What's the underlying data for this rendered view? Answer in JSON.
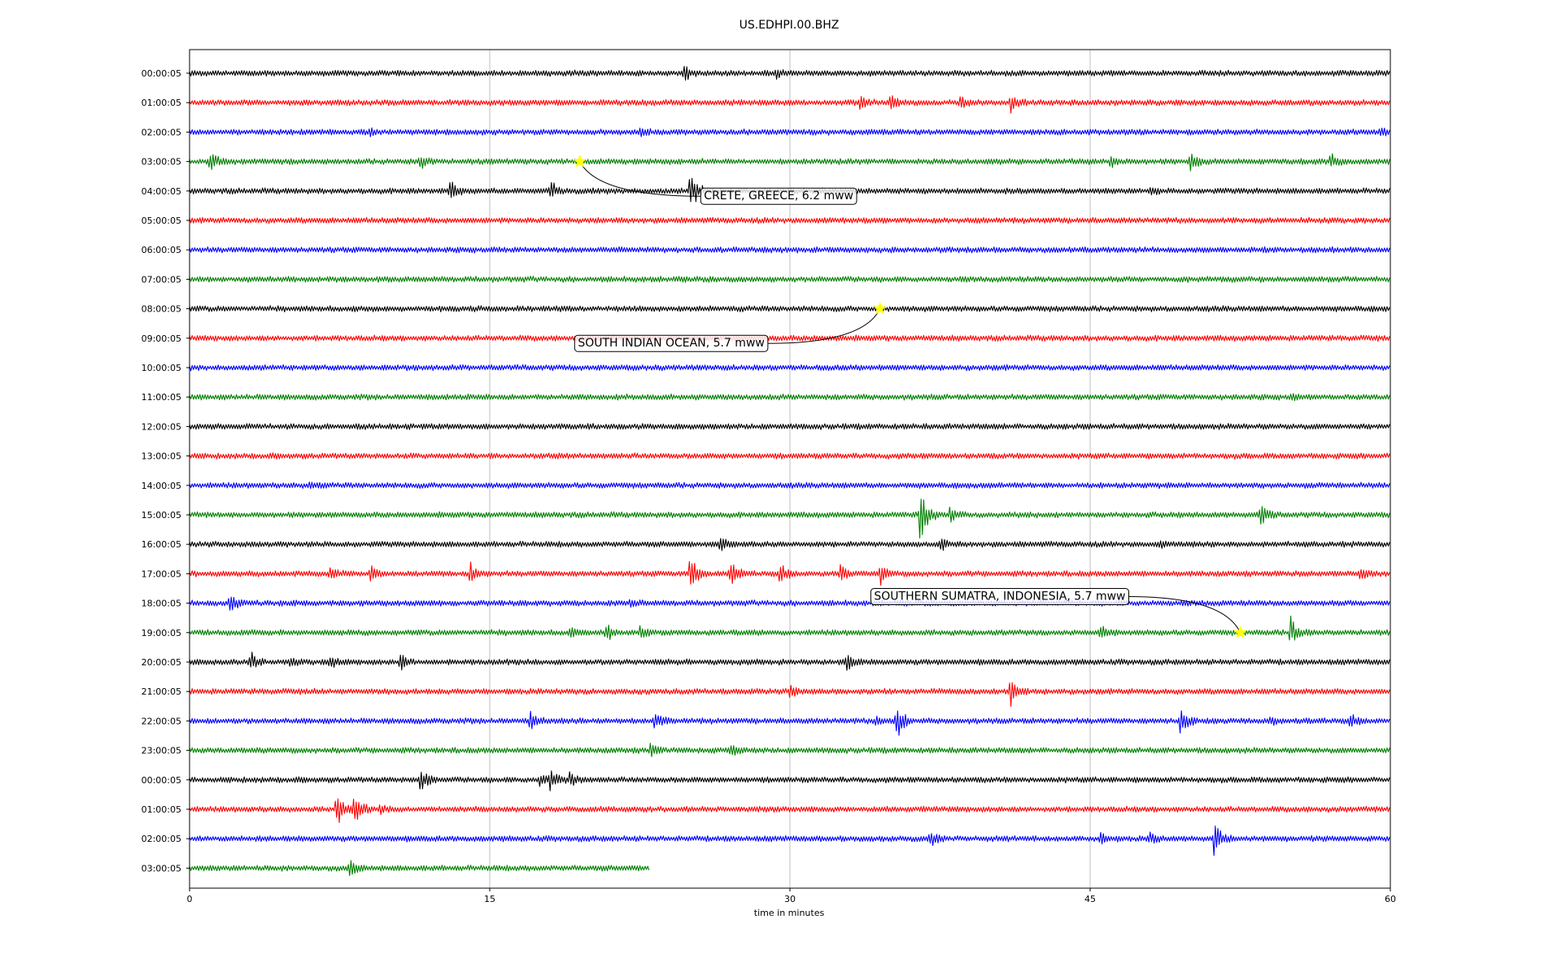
{
  "chart_data": {
    "type": "line",
    "title": "US.EDHPI.00.BHZ",
    "xlabel": "time in minutes",
    "ylabel": "",
    "xlim": [
      0,
      60
    ],
    "x_ticks": [
      0,
      15,
      30,
      45,
      60
    ],
    "x_tick_labels": [
      "0",
      "15",
      "30",
      "45",
      "60"
    ],
    "grid_x": true,
    "row_labels": [
      "00:00:05",
      "01:00:05",
      "02:00:05",
      "03:00:05",
      "04:00:05",
      "05:00:05",
      "06:00:05",
      "07:00:05",
      "08:00:05",
      "09:00:05",
      "10:00:05",
      "11:00:05",
      "12:00:05",
      "13:00:05",
      "14:00:05",
      "15:00:05",
      "16:00:05",
      "17:00:05",
      "18:00:05",
      "19:00:05",
      "20:00:05",
      "21:00:05",
      "22:00:05",
      "23:00:05",
      "00:00:05",
      "01:00:05",
      "02:00:05",
      "03:00:05"
    ],
    "row_colors": [
      "#000000",
      "#ff0000",
      "#0000ff",
      "#008000"
    ],
    "last_row_end_minutes": 23,
    "events_bursts": [
      {
        "row": 0,
        "minute": 24.7,
        "amp": 14
      },
      {
        "row": 0,
        "minute": 29.3,
        "amp": 5
      },
      {
        "row": 1,
        "minute": 33.5,
        "amp": 10
      },
      {
        "row": 1,
        "minute": 35,
        "amp": 10
      },
      {
        "row": 1,
        "minute": 38.5,
        "amp": 8
      },
      {
        "row": 1,
        "minute": 41,
        "amp": 16
      },
      {
        "row": 2,
        "minute": 9,
        "amp": 4
      },
      {
        "row": 2,
        "minute": 22.5,
        "amp": 5
      },
      {
        "row": 2,
        "minute": 59.5,
        "amp": 6
      },
      {
        "row": 3,
        "minute": 1,
        "amp": 14
      },
      {
        "row": 3,
        "minute": 11.5,
        "amp": 10
      },
      {
        "row": 3,
        "minute": 46,
        "amp": 8
      },
      {
        "row": 3,
        "minute": 50,
        "amp": 14
      },
      {
        "row": 3,
        "minute": 57,
        "amp": 10
      },
      {
        "row": 4,
        "minute": 13,
        "amp": 14
      },
      {
        "row": 4,
        "minute": 18,
        "amp": 14
      },
      {
        "row": 4,
        "minute": 25,
        "amp": 34
      },
      {
        "row": 4,
        "minute": 48,
        "amp": 5
      },
      {
        "row": 11,
        "minute": 55,
        "amp": 3
      },
      {
        "row": 14,
        "minute": 6,
        "amp": 6
      },
      {
        "row": 15,
        "minute": 36.5,
        "amp": 46
      },
      {
        "row": 15,
        "minute": 38,
        "amp": 10
      },
      {
        "row": 15,
        "minute": 53.5,
        "amp": 18
      },
      {
        "row": 16,
        "minute": 26.5,
        "amp": 12
      },
      {
        "row": 16,
        "minute": 37.5,
        "amp": 10
      },
      {
        "row": 16,
        "minute": 48.5,
        "amp": 3
      },
      {
        "row": 17,
        "minute": 7,
        "amp": 10
      },
      {
        "row": 17,
        "minute": 9,
        "amp": 12
      },
      {
        "row": 17,
        "minute": 14,
        "amp": 16
      },
      {
        "row": 17,
        "minute": 25,
        "amp": 34
      },
      {
        "row": 17,
        "minute": 27,
        "amp": 22
      },
      {
        "row": 17,
        "minute": 29.5,
        "amp": 16
      },
      {
        "row": 17,
        "minute": 32.5,
        "amp": 14
      },
      {
        "row": 17,
        "minute": 34.5,
        "amp": 14
      },
      {
        "row": 17,
        "minute": 58.5,
        "amp": 7
      },
      {
        "row": 18,
        "minute": 2,
        "amp": 12
      },
      {
        "row": 18,
        "minute": 22,
        "amp": 4
      },
      {
        "row": 19,
        "minute": 19,
        "amp": 6
      },
      {
        "row": 19,
        "minute": 20.8,
        "amp": 14
      },
      {
        "row": 19,
        "minute": 22.5,
        "amp": 8
      },
      {
        "row": 19,
        "minute": 45.5,
        "amp": 10
      },
      {
        "row": 19,
        "minute": 55,
        "amp": 22
      },
      {
        "row": 20,
        "minute": 3,
        "amp": 14
      },
      {
        "row": 20,
        "minute": 5,
        "amp": 5
      },
      {
        "row": 20,
        "minute": 7,
        "amp": 8
      },
      {
        "row": 20,
        "minute": 10.5,
        "amp": 14
      },
      {
        "row": 20,
        "minute": 32.8,
        "amp": 14
      },
      {
        "row": 21,
        "minute": 30,
        "amp": 10
      },
      {
        "row": 21,
        "minute": 41,
        "amp": 20
      },
      {
        "row": 22,
        "minute": 17,
        "amp": 12
      },
      {
        "row": 22,
        "minute": 23.2,
        "amp": 16
      },
      {
        "row": 22,
        "minute": 34.3,
        "amp": 6
      },
      {
        "row": 22,
        "minute": 35.3,
        "amp": 30
      },
      {
        "row": 22,
        "minute": 49.5,
        "amp": 22
      },
      {
        "row": 22,
        "minute": 54,
        "amp": 6
      },
      {
        "row": 22,
        "minute": 58,
        "amp": 10
      },
      {
        "row": 23,
        "minute": 23,
        "amp": 10
      },
      {
        "row": 23,
        "minute": 27,
        "amp": 8
      },
      {
        "row": 24,
        "minute": 11.5,
        "amp": 22
      },
      {
        "row": 24,
        "minute": 17.5,
        "amp": 8
      },
      {
        "row": 24,
        "minute": 18,
        "amp": 14
      },
      {
        "row": 24,
        "minute": 19,
        "amp": 10
      },
      {
        "row": 25,
        "minute": 7.3,
        "amp": 30
      },
      {
        "row": 25,
        "minute": 8.2,
        "amp": 34
      },
      {
        "row": 25,
        "minute": 9.5,
        "amp": 6
      },
      {
        "row": 26,
        "minute": 37,
        "amp": 10
      },
      {
        "row": 26,
        "minute": 45.5,
        "amp": 8
      },
      {
        "row": 26,
        "minute": 48,
        "amp": 8
      },
      {
        "row": 26,
        "minute": 51.2,
        "amp": 28
      },
      {
        "row": 27,
        "minute": 8,
        "amp": 12
      }
    ],
    "annotations": [
      {
        "text": "CRETE, GREECE, 6.2 mww",
        "star_row": 3,
        "star_minute": 19.5,
        "label_row": 4.15,
        "label_minute": 25.5,
        "label_align": "start"
      },
      {
        "text": "SOUTH INDIAN OCEAN, 5.7 mww",
        "star_row": 8,
        "star_minute": 34.5,
        "label_row": 9.15,
        "label_minute": 19.2,
        "label_align": "start"
      },
      {
        "text": "SOUTHERN SUMATRA, INDONESIA, 5.7 mww",
        "star_row": 19,
        "star_minute": 52.5,
        "label_row": 17.75,
        "label_minute": 34,
        "label_align": "start"
      }
    ],
    "star_color": "#ffff00"
  }
}
